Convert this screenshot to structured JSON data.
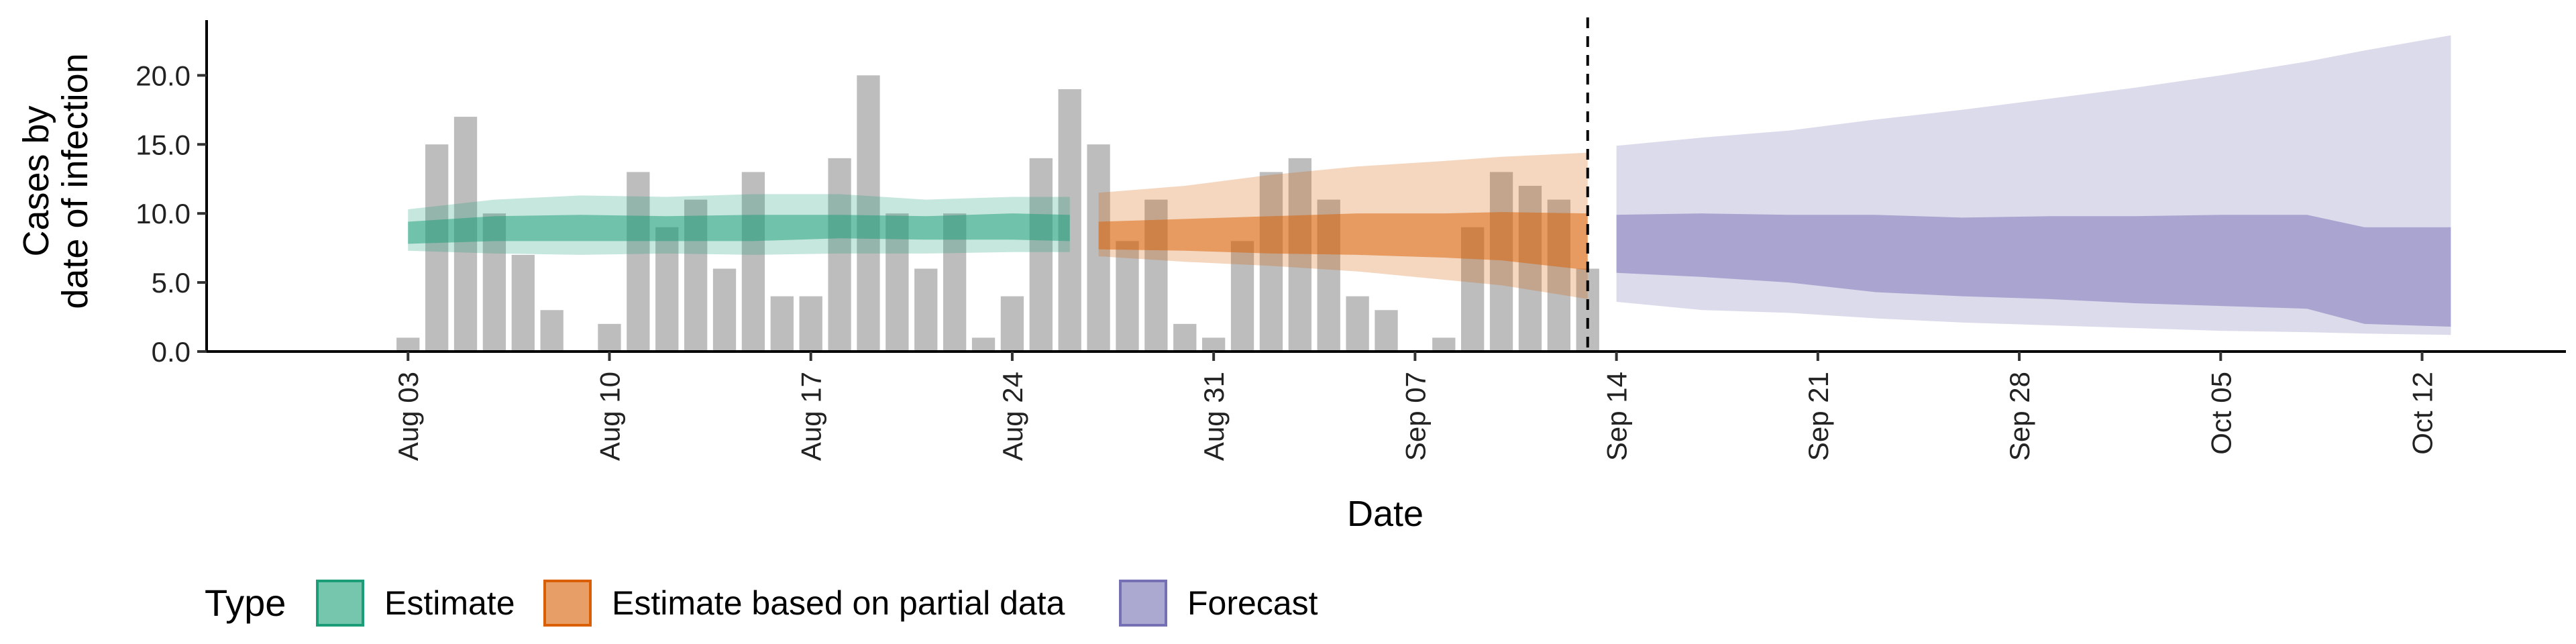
{
  "chart_data": {
    "type": "area",
    "xlabel": "Date",
    "ylabel_lines": [
      "Cases by",
      "date of infection"
    ],
    "ylim": [
      0,
      24
    ],
    "yticks": [
      0,
      5,
      10,
      15,
      20
    ],
    "ytick_labels": [
      "0.0",
      "5.0",
      "10.0",
      "15.0",
      "20.0"
    ],
    "x_range": [
      "2021-07-27",
      "2021-10-17"
    ],
    "xticks": [
      "2021-08-03",
      "2021-08-10",
      "2021-08-17",
      "2021-08-24",
      "2021-08-31",
      "2021-09-07",
      "2021-09-14",
      "2021-09-21",
      "2021-09-28",
      "2021-10-05",
      "2021-10-12"
    ],
    "xtick_labels": [
      "Aug 03",
      "Aug 10",
      "Aug 17",
      "Aug 24",
      "Aug 31",
      "Sep 07",
      "Sep 14",
      "Sep 21",
      "Sep 28",
      "Oct 05",
      "Oct 12"
    ],
    "vline_date": "2021-09-13",
    "observed_cases": {
      "dates": [
        "2021-08-03",
        "2021-08-04",
        "2021-08-05",
        "2021-08-06",
        "2021-08-07",
        "2021-08-08",
        "2021-08-09",
        "2021-08-10",
        "2021-08-11",
        "2021-08-12",
        "2021-08-13",
        "2021-08-14",
        "2021-08-15",
        "2021-08-16",
        "2021-08-17",
        "2021-08-18",
        "2021-08-19",
        "2021-08-20",
        "2021-08-21",
        "2021-08-22",
        "2021-08-23",
        "2021-08-24",
        "2021-08-25",
        "2021-08-26",
        "2021-08-27",
        "2021-08-28",
        "2021-08-29",
        "2021-08-30",
        "2021-08-31",
        "2021-09-01",
        "2021-09-02",
        "2021-09-03",
        "2021-09-04",
        "2021-09-05",
        "2021-09-06",
        "2021-09-07",
        "2021-09-08",
        "2021-09-09",
        "2021-09-10",
        "2021-09-11",
        "2021-09-12",
        "2021-09-13"
      ],
      "values": [
        1,
        15,
        17,
        10,
        7,
        3,
        0,
        2,
        13,
        9,
        11,
        6,
        13,
        4,
        4,
        14,
        20,
        10,
        6,
        10,
        1,
        4,
        14,
        19,
        15,
        8,
        11,
        2,
        1,
        8,
        13,
        14,
        11,
        4,
        3,
        0,
        1,
        9,
        13,
        12,
        11,
        6
      ]
    },
    "series": [
      {
        "name": "Estimate",
        "color": "#1b9e77",
        "dates": [
          "2021-08-03",
          "2021-08-06",
          "2021-08-09",
          "2021-08-12",
          "2021-08-15",
          "2021-08-18",
          "2021-08-21",
          "2021-08-24",
          "2021-08-26"
        ],
        "lower90": [
          7.3,
          7.1,
          7.0,
          7.1,
          7.0,
          7.1,
          7.1,
          7.2,
          7.2
        ],
        "upper90": [
          10.3,
          11.0,
          11.3,
          11.2,
          11.4,
          11.4,
          11.0,
          11.2,
          11.2
        ],
        "lower50": [
          7.8,
          8.0,
          8.0,
          8.0,
          8.0,
          8.2,
          8.1,
          8.1,
          8.0
        ],
        "upper50": [
          9.4,
          9.8,
          9.9,
          9.8,
          9.9,
          9.9,
          9.8,
          10.0,
          9.9
        ]
      },
      {
        "name": "Estimate based on partial data",
        "color": "#d95f02",
        "dates": [
          "2021-08-27",
          "2021-08-30",
          "2021-09-02",
          "2021-09-05",
          "2021-09-08",
          "2021-09-10",
          "2021-09-13"
        ],
        "lower90": [
          6.9,
          6.5,
          6.2,
          5.8,
          5.2,
          4.8,
          3.8
        ],
        "upper90": [
          11.5,
          12.0,
          12.8,
          13.4,
          13.8,
          14.1,
          14.4
        ],
        "lower50": [
          7.4,
          7.3,
          7.1,
          7.0,
          6.8,
          6.6,
          5.9
        ],
        "upper50": [
          9.4,
          9.6,
          9.8,
          10.0,
          10.0,
          10.1,
          10.0
        ]
      },
      {
        "name": "Forecast",
        "color": "#7570b3",
        "dates": [
          "2021-09-14",
          "2021-09-17",
          "2021-09-20",
          "2021-09-23",
          "2021-09-26",
          "2021-09-29",
          "2021-10-02",
          "2021-10-05",
          "2021-10-08",
          "2021-10-10",
          "2021-10-13"
        ],
        "lower90": [
          3.6,
          3.0,
          2.8,
          2.4,
          2.1,
          1.9,
          1.7,
          1.5,
          1.4,
          1.3,
          1.2
        ],
        "upper90": [
          14.9,
          15.5,
          16.0,
          16.8,
          17.5,
          18.3,
          19.1,
          20.0,
          21.0,
          21.8,
          22.9
        ],
        "lower50": [
          5.7,
          5.4,
          5.0,
          4.3,
          4.0,
          3.8,
          3.5,
          3.3,
          3.1,
          2.0,
          1.8
        ],
        "upper50": [
          9.9,
          10.0,
          9.9,
          9.9,
          9.7,
          9.8,
          9.8,
          9.9,
          9.9,
          9.0,
          9.0
        ]
      }
    ],
    "legend": {
      "title": "Type",
      "placement": "bottom",
      "entries": [
        {
          "label": "Estimate",
          "color": "#1b9e77"
        },
        {
          "label": "Estimate based on partial data",
          "color": "#d95f02"
        },
        {
          "label": "Forecast",
          "color": "#7570b3"
        }
      ]
    },
    "grid": false
  }
}
